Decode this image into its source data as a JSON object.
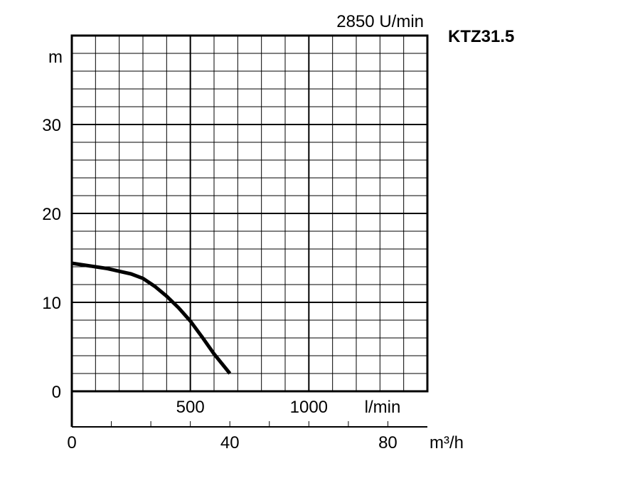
{
  "chart_data": {
    "type": "line",
    "title": "KTZ31.5",
    "subtitle": "2850 U/min",
    "ylabel": "m",
    "xlabel_top": "l/min",
    "xlabel_bottom": "m³/h",
    "ylim": [
      0,
      40
    ],
    "xlim_lmin": [
      0,
      1500
    ],
    "xlim_m3h": [
      0,
      90
    ],
    "y_ticks": [
      {
        "value": 0,
        "label": "0"
      },
      {
        "value": 10,
        "label": "10"
      },
      {
        "value": 20,
        "label": "20"
      },
      {
        "value": 30,
        "label": "30"
      }
    ],
    "x_ticks_lmin": [
      {
        "value": 500,
        "label": "500"
      },
      {
        "value": 1000,
        "label": "1000"
      }
    ],
    "x_ticks_m3h": [
      {
        "value": 0,
        "label": "0"
      },
      {
        "value": 40,
        "label": "40"
      },
      {
        "value": 80,
        "label": "80"
      }
    ],
    "grid": true,
    "series": [
      {
        "x_unit": "l/min",
        "x": [
          0,
          100,
          150,
          200,
          250,
          300,
          350,
          400,
          450,
          500,
          550,
          600,
          667
        ],
        "y": [
          14.4,
          14.0,
          13.8,
          13.5,
          13.2,
          12.7,
          11.8,
          10.7,
          9.4,
          7.9,
          6.1,
          4.2,
          2.0
        ]
      }
    ]
  }
}
